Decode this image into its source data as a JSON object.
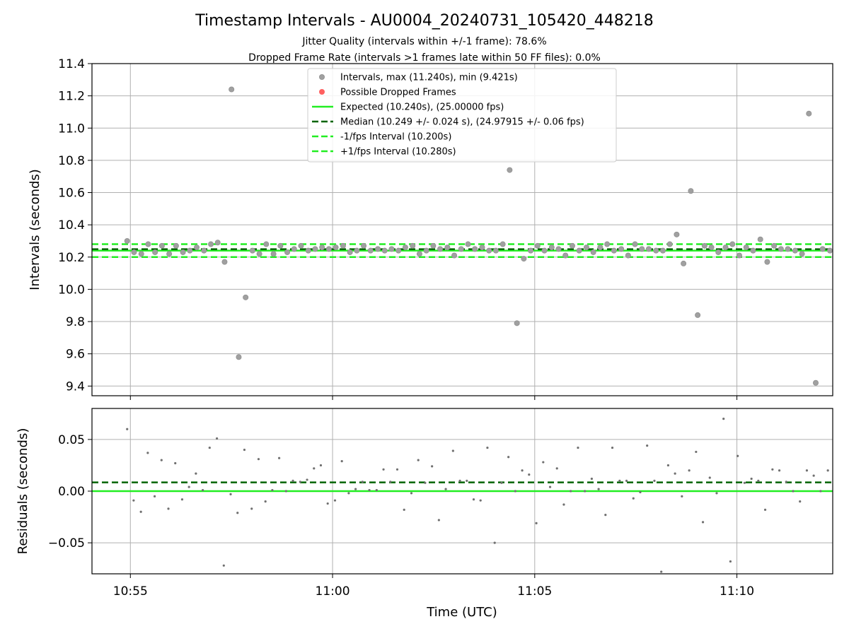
{
  "chart_data": [
    {
      "type": "scatter",
      "title": "Timestamp Intervals - AU0004_20240731_105420_448218",
      "subtitle_lines": [
        "Jitter Quality (intervals within +/-1 frame): 78.6%",
        "Dropped Frame Rate (intervals >1 frames late within 50 FF files): 0.0%"
      ],
      "ylabel": "Intervals (seconds)",
      "ylim": [
        9.34,
        11.4
      ],
      "yticks": [
        "11.4",
        "11.2",
        "11.0",
        "10.8",
        "10.6",
        "10.4",
        "10.2",
        "10.0",
        "9.8",
        "9.6",
        "9.4"
      ],
      "ytick_values": [
        11.4,
        11.2,
        11.0,
        10.8,
        10.6,
        10.4,
        10.2,
        10.0,
        9.8,
        9.6,
        9.4
      ],
      "xlim_minutes": [
        -0.95,
        17.37
      ],
      "xtick_minutes": [
        0,
        5,
        10,
        15
      ],
      "grid": true,
      "legend_position": "top-center",
      "legend": [
        {
          "label": "Intervals, max (11.240s), min (9.421s)",
          "kind": "dot",
          "color": "#a0a0a0"
        },
        {
          "label": "Possible Dropped Frames",
          "kind": "dot",
          "color": "#ff6060"
        },
        {
          "label": "Expected (10.240s), (25.00000 fps)",
          "kind": "solid",
          "color": "#22ee22"
        },
        {
          "label": "Median (10.249 +/- 0.024 s), (24.97915 +/- 0.06 fps)",
          "kind": "dashed",
          "color": "#006400"
        },
        {
          "label": "-1/fps Interval (10.200s)",
          "kind": "dashed",
          "color": "#22ee22"
        },
        {
          "label": "+1/fps Interval (10.280s)",
          "kind": "dashed",
          "color": "#22ee22"
        }
      ],
      "lines": {
        "expected": 10.24,
        "median": 10.249,
        "lower": 10.2,
        "upper": 10.28
      },
      "dot_color": "#a0a0a0",
      "x_minutes": [
        -0.08,
        0.09,
        0.27,
        0.44,
        0.61,
        0.78,
        0.96,
        1.13,
        1.3,
        1.47,
        1.64,
        1.82,
        1.99,
        2.16,
        2.33,
        2.5,
        2.68,
        2.85,
        3.02,
        3.19,
        3.36,
        3.54,
        3.71,
        3.88,
        4.05,
        4.22,
        4.4,
        4.57,
        4.74,
        4.91,
        5.08,
        5.26,
        5.43,
        5.6,
        5.77,
        5.94,
        6.12,
        6.29,
        6.46,
        6.63,
        6.8,
        6.98,
        7.15,
        7.32,
        7.49,
        7.66,
        7.84,
        8.01,
        8.18,
        8.35,
        8.52,
        8.7,
        8.87,
        9.04,
        9.21,
        9.38,
        9.56,
        9.73,
        9.9,
        10.07,
        10.24,
        10.42,
        10.59,
        10.76,
        10.93,
        11.1,
        11.28,
        11.45,
        11.62,
        11.79,
        11.96,
        12.14,
        12.31,
        12.48,
        12.65,
        12.82,
        13.0,
        13.17,
        13.34,
        13.51,
        13.68,
        13.86,
        14.03,
        14.2,
        14.37,
        14.54,
        14.72,
        14.89,
        15.06,
        15.23,
        15.4,
        15.58,
        15.75,
        15.92,
        16.09,
        16.26,
        16.44,
        16.61,
        16.78,
        16.95,
        17.12,
        17.3
      ],
      "y": [
        10.3,
        10.23,
        10.22,
        10.28,
        10.23,
        10.27,
        10.22,
        10.27,
        10.23,
        10.24,
        10.26,
        10.24,
        10.28,
        10.29,
        10.17,
        11.24,
        9.58,
        9.95,
        10.24,
        10.22,
        10.28,
        10.22,
        10.27,
        10.23,
        10.25,
        10.27,
        10.24,
        10.25,
        10.26,
        10.25,
        10.26,
        10.27,
        10.23,
        10.24,
        10.27,
        10.24,
        10.25,
        10.24,
        10.25,
        10.24,
        10.26,
        10.27,
        10.22,
        10.24,
        10.27,
        10.25,
        10.26,
        10.21,
        10.25,
        10.28,
        10.25,
        10.26,
        10.24,
        10.24,
        10.28,
        10.74,
        9.79,
        10.19,
        10.24,
        10.27,
        10.24,
        10.26,
        10.25,
        10.21,
        10.27,
        10.24,
        10.26,
        10.23,
        10.26,
        10.28,
        10.24,
        10.25,
        10.21,
        10.28,
        10.25,
        10.25,
        10.24,
        10.24,
        10.28,
        10.34,
        10.16,
        10.61,
        9.84,
        10.27,
        10.26,
        10.23,
        10.26,
        10.28,
        10.21,
        10.26,
        10.24,
        10.31,
        10.17,
        10.27,
        10.25,
        10.25,
        10.24,
        10.22,
        11.09,
        9.42,
        10.25,
        10.24
      ]
    },
    {
      "type": "scatter",
      "ylabel": "Residuals (seconds)",
      "xlabel": "Time (UTC)",
      "ylim": [
        -0.08,
        0.08
      ],
      "yticks": [
        "0.05",
        "0.00",
        "−0.05"
      ],
      "ytick_values": [
        0.05,
        0.0,
        -0.05
      ],
      "xticks": [
        "10:55",
        "11:00",
        "11:05",
        "11:10"
      ],
      "xtick_minutes": [
        0,
        5,
        10,
        15
      ],
      "xlim_minutes": [
        -0.95,
        17.37
      ],
      "grid": true,
      "lines": {
        "zero": 0.0,
        "median_offset": 0.0085
      },
      "dot_color": "#707070",
      "x_minutes": [
        -0.08,
        0.08,
        0.26,
        0.43,
        0.6,
        0.77,
        0.94,
        1.11,
        1.28,
        1.45,
        1.62,
        1.79,
        1.96,
        2.14,
        2.31,
        2.48,
        2.65,
        2.82,
        3.0,
        3.17,
        3.34,
        3.51,
        3.68,
        3.85,
        4.02,
        4.2,
        4.37,
        4.54,
        4.71,
        4.88,
        5.06,
        5.23,
        5.4,
        5.57,
        5.74,
        5.91,
        6.09,
        6.26,
        6.43,
        6.6,
        6.77,
        6.95,
        7.12,
        7.29,
        7.46,
        7.63,
        7.8,
        7.98,
        8.15,
        8.32,
        8.49,
        8.66,
        8.83,
        9.01,
        9.18,
        9.35,
        9.52,
        9.69,
        9.86,
        10.04,
        10.21,
        10.38,
        10.55,
        10.72,
        10.89,
        11.07,
        11.24,
        11.41,
        11.58,
        11.75,
        11.92,
        12.1,
        12.27,
        12.44,
        12.61,
        12.78,
        12.96,
        13.13,
        13.3,
        13.47,
        13.64,
        13.82,
        13.99,
        14.16,
        14.33,
        14.5,
        14.67,
        14.84,
        15.02,
        15.19,
        15.36,
        15.53,
        15.7,
        15.88,
        16.05,
        16.22,
        16.39,
        16.56,
        16.73,
        16.9,
        17.07,
        17.25
      ],
      "y": [
        0.06,
        -0.009,
        -0.02,
        0.037,
        -0.005,
        0.03,
        -0.017,
        0.027,
        -0.008,
        0.004,
        0.017,
        0.001,
        0.042,
        0.051,
        -0.072,
        -0.003,
        -0.021,
        0.04,
        -0.017,
        0.031,
        -0.01,
        0.001,
        0.032,
        0.0,
        0.01,
        0.009,
        0.011,
        0.022,
        0.025,
        -0.012,
        -0.009,
        0.029,
        -0.002,
        0.002,
        0.009,
        0.001,
        0.001,
        0.021,
        0.009,
        0.021,
        -0.018,
        -0.002,
        0.03,
        0.008,
        0.024,
        -0.028,
        0.002,
        0.039,
        0.01,
        0.01,
        -0.008,
        -0.009,
        0.042,
        -0.05,
        0.008,
        0.033,
        0.0,
        0.02,
        0.016,
        -0.031,
        0.028,
        0.004,
        0.022,
        -0.013,
        0.0,
        0.042,
        0.0,
        0.012,
        0.002,
        -0.023,
        0.042,
        0.01,
        0.01,
        -0.007,
        -0.001,
        0.044,
        0.01,
        -0.078,
        0.025,
        0.017,
        -0.005,
        0.02,
        0.038,
        -0.03,
        0.013,
        -0.002,
        0.07,
        -0.068,
        0.034,
        0.008,
        0.012,
        0.01,
        -0.018,
        0.021,
        0.02,
        0.009,
        0.0,
        -0.01,
        0.02,
        0.015,
        0.0,
        0.02
      ]
    }
  ]
}
